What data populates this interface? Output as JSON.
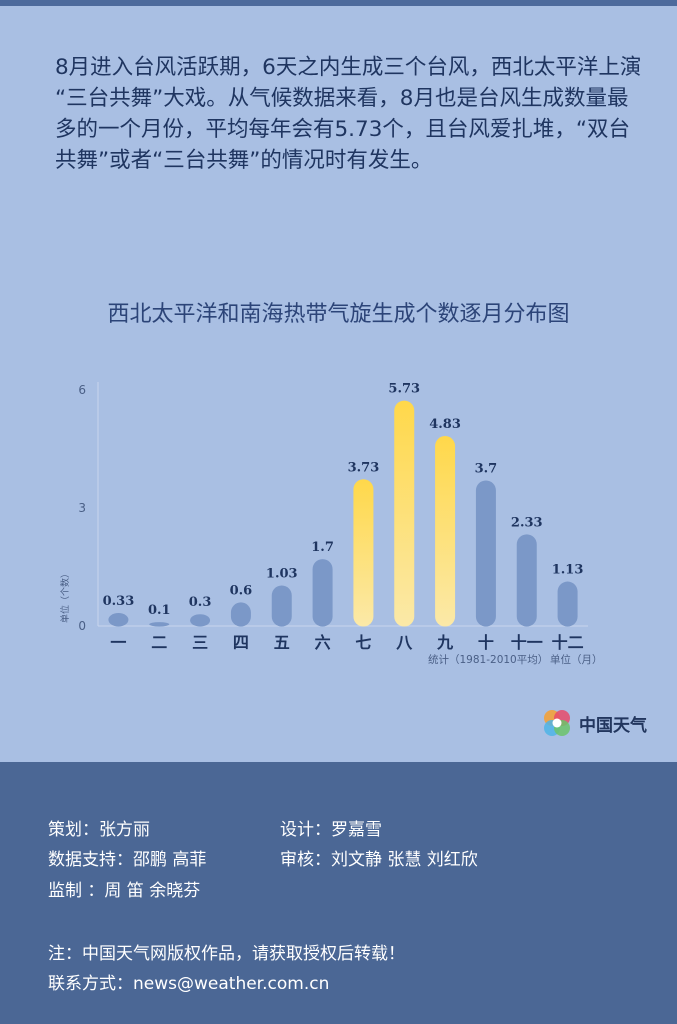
{
  "intro_text": "8月进入台风活跃期，6天之内生成三个台风，西北太平洋上演 “三台共舞”大戏。从气候数据来看，8月也是台风生成数量最多的一个月份，平均每年会有5.73个，且台风爱扎堆，“双台共舞”或者“三台共舞”的情况时有发生。",
  "chart_data": {
    "type": "bar",
    "title": "西北太平洋和南海热带气旋生成个数逐月分布图",
    "categories": [
      "一",
      "二",
      "三",
      "四",
      "五",
      "六",
      "七",
      "八",
      "九",
      "十",
      "十一",
      "十二"
    ],
    "values": [
      0.33,
      0.1,
      0.3,
      0.6,
      1.03,
      1.7,
      3.73,
      5.73,
      4.83,
      3.7,
      2.33,
      1.13
    ],
    "data_labels": [
      "0.33",
      "0.1",
      "0.3",
      "0.6",
      "1.03",
      "1.7",
      "3.73",
      "5.73",
      "4.83",
      "3.7",
      "2.33",
      "1.13"
    ],
    "highlighted": [
      6,
      7,
      8
    ],
    "ylim": [
      0,
      6
    ],
    "yticks": [
      "0",
      "3",
      "6"
    ],
    "ylabel": "单位（个数）",
    "note_source": "统计（1981-2010平均）",
    "note_unit": "单位（月）",
    "colors": {
      "bar": "#7b98c8",
      "highlight_top": "#ffd84a",
      "highlight_bottom": "#fbe9a8"
    }
  },
  "logo_text": "中国天气",
  "credits": {
    "planning": "策划：张方丽",
    "design": "设计：罗嘉雪",
    "data_support": "数据支持：邵鹏 高菲",
    "review": "审核：刘文静 张慧 刘红欣",
    "supervision": "监制 ：周 笛   余晓芬",
    "copyright": "注：中国天气网版权作品，请获取授权后转载！",
    "contact": "联系方式：news@weather.com.cn"
  }
}
